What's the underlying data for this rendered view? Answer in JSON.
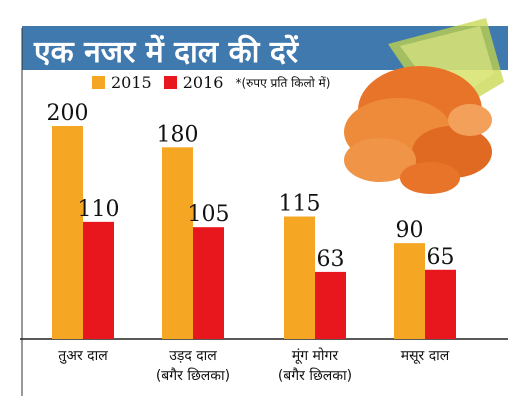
{
  "header": {
    "title": "एक नजर में दाल की दरें"
  },
  "legend": {
    "items": [
      {
        "label": "2015",
        "color": "#f5a623"
      },
      {
        "label": "2016",
        "color": "#e8171e"
      }
    ],
    "note": "*(रुपए प्रति किलो में)"
  },
  "colors": {
    "title_band": "#3f79ad",
    "bar_2015": "#f5a623",
    "bar_2016": "#e8171e",
    "lentils_image": "#e8742a"
  },
  "chart_data": {
    "type": "bar",
    "title": "एक नजर में दाल की दरें",
    "categories": [
      [
        "तुअर दाल"
      ],
      [
        "उड़द दाल",
        "(बगैर छिलका)"
      ],
      [
        "मूंग मोगर",
        "(बगैर छिलका)"
      ],
      [
        "मसूर दाल"
      ]
    ],
    "series": [
      {
        "name": "2015",
        "values": [
          200,
          180,
          115,
          90
        ]
      },
      {
        "name": "2016",
        "values": [
          110,
          105,
          63,
          65
        ]
      }
    ],
    "unit_note": "*(रुपए प्रति किलो में)",
    "ylim": [
      0,
      200
    ],
    "grid": false,
    "legend_position": "top"
  }
}
